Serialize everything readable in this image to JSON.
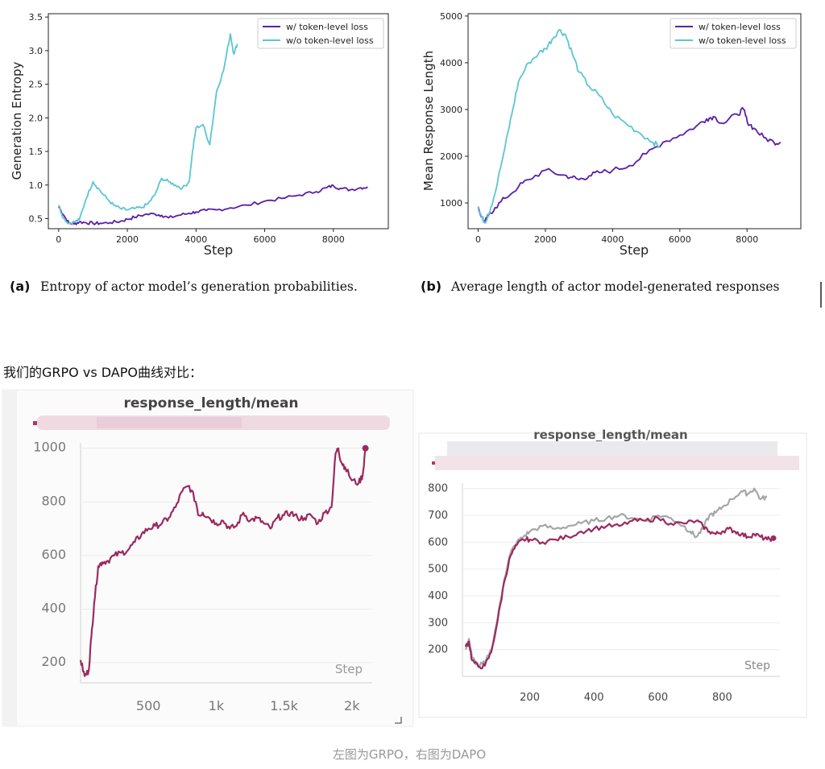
{
  "section_heading": "我们的GRPO vs DAPO曲线对比：",
  "footer_caption": "左图为GRPO，右图为DAPO",
  "colors": {
    "purple": "#5a1fa6",
    "cyan": "#5bc6d2",
    "crimson": "#9b2a5e",
    "grey": "#a4a6a8"
  },
  "chart_data": [
    {
      "type": "line",
      "xlabel": "Step",
      "ylabel": "Generation Entropy",
      "caption_tag": "(a)",
      "caption_text": "Entropy of actor model’s generation probabilities.",
      "xlim": [
        -300,
        9600
      ],
      "ylim": [
        0.35,
        3.55
      ],
      "xticks": [
        "0",
        "2000",
        "4000",
        "6000",
        "8000"
      ],
      "yticks": [
        "0.5",
        "1.0",
        "1.5",
        "2.0",
        "2.5",
        "3.0",
        "3.5"
      ],
      "legend_position": "top-right",
      "series": [
        {
          "name": "w/ token-level loss",
          "color": "#5a1fa6",
          "x": [
            0,
            150,
            300,
            450,
            600,
            800,
            1000,
            1200,
            1500,
            1800,
            2000,
            2200,
            2500,
            2800,
            3000,
            3200,
            3500,
            3800,
            4000,
            4300,
            4600,
            5000,
            5500,
            6000,
            6500,
            7000,
            7500,
            7800,
            8000,
            8200,
            8500,
            8800,
            9000
          ],
          "y": [
            0.68,
            0.55,
            0.43,
            0.42,
            0.45,
            0.44,
            0.43,
            0.43,
            0.44,
            0.46,
            0.49,
            0.52,
            0.56,
            0.57,
            0.55,
            0.51,
            0.55,
            0.58,
            0.6,
            0.62,
            0.63,
            0.66,
            0.7,
            0.76,
            0.8,
            0.85,
            0.9,
            0.96,
            0.99,
            0.95,
            0.93,
            0.96,
            0.97
          ]
        },
        {
          "name": "w/o token-level loss",
          "color": "#5bc6d2",
          "x": [
            0,
            150,
            300,
            450,
            600,
            800,
            1000,
            1200,
            1400,
            1600,
            1800,
            2000,
            2200,
            2400,
            2600,
            2800,
            3000,
            3200,
            3400,
            3600,
            3800,
            3900,
            4000,
            4200,
            4400,
            4600,
            4800,
            5000,
            5100,
            5200
          ],
          "y": [
            0.7,
            0.5,
            0.43,
            0.45,
            0.48,
            0.8,
            1.05,
            0.92,
            0.8,
            0.7,
            0.65,
            0.63,
            0.65,
            0.66,
            0.72,
            0.85,
            1.1,
            1.05,
            1.0,
            0.95,
            1.05,
            1.5,
            1.85,
            1.9,
            1.6,
            2.4,
            2.7,
            3.25,
            2.95,
            3.1
          ]
        }
      ]
    },
    {
      "type": "line",
      "xlabel": "Step",
      "ylabel": "Mean Response Length",
      "caption_tag": "(b)",
      "caption_text": "Average length of actor model-generated responses",
      "xlim": [
        -300,
        9600
      ],
      "ylim": [
        450,
        5050
      ],
      "xticks": [
        "0",
        "2000",
        "4000",
        "6000",
        "8000"
      ],
      "yticks": [
        "1000",
        "2000",
        "3000",
        "4000",
        "5000"
      ],
      "legend_position": "top-right",
      "series": [
        {
          "name": "w/ token-level loss",
          "color": "#5a1fa6",
          "x": [
            0,
            100,
            200,
            300,
            500,
            800,
            1200,
            1500,
            2000,
            2500,
            2800,
            3000,
            3300,
            3600,
            4000,
            4500,
            5000,
            5500,
            6000,
            6500,
            6800,
            7000,
            7300,
            7700,
            7900,
            8000,
            8200,
            8500,
            8800,
            9000
          ],
          "y": [
            920,
            700,
            580,
            720,
            900,
            1100,
            1350,
            1500,
            1700,
            1600,
            1550,
            1500,
            1580,
            1650,
            1700,
            1800,
            2050,
            2300,
            2450,
            2650,
            2800,
            2850,
            2700,
            2900,
            3000,
            2750,
            2600,
            2400,
            2300,
            2300
          ]
        },
        {
          "name": "w/o token-level loss",
          "color": "#5bc6d2",
          "x": [
            0,
            100,
            200,
            300,
            500,
            800,
            1000,
            1200,
            1500,
            1800,
            2000,
            2200,
            2400,
            2600,
            2800,
            3000,
            3300,
            3600,
            4000,
            4400,
            4800,
            5200,
            5400
          ],
          "y": [
            920,
            700,
            590,
            750,
            1200,
            2200,
            2900,
            3600,
            4000,
            4200,
            4300,
            4500,
            4700,
            4600,
            4200,
            3800,
            3500,
            3300,
            2900,
            2700,
            2500,
            2300,
            2200
          ]
        }
      ]
    },
    {
      "type": "line",
      "title": "response_length/mean",
      "xlabel": "Step",
      "xlim": [
        0,
        2150
      ],
      "ylim": [
        125,
        1020
      ],
      "xticks": [
        "500",
        "1k",
        "1.5k",
        "2k"
      ],
      "yticks": [
        "200",
        "400",
        "600",
        "800",
        "1000"
      ],
      "series": [
        {
          "color": "#9b2a5e",
          "x": [
            0,
            30,
            60,
            80,
            100,
            130,
            160,
            200,
            250,
            300,
            350,
            400,
            450,
            500,
            550,
            600,
            650,
            700,
            750,
            800,
            850,
            870,
            900,
            950,
            1000,
            1050,
            1100,
            1150,
            1200,
            1250,
            1300,
            1350,
            1400,
            1450,
            1500,
            1550,
            1600,
            1650,
            1700,
            1750,
            1800,
            1850,
            1880,
            1900,
            1920,
            1950,
            2000,
            2050,
            2080,
            2100
          ],
          "y": [
            210,
            150,
            170,
            300,
            420,
            560,
            575,
            580,
            600,
            610,
            620,
            650,
            680,
            700,
            710,
            720,
            740,
            780,
            840,
            860,
            800,
            750,
            760,
            740,
            720,
            730,
            700,
            710,
            760,
            730,
            740,
            720,
            700,
            740,
            750,
            760,
            740,
            740,
            750,
            720,
            760,
            780,
            980,
            1000,
            950,
            930,
            880,
            870,
            900,
            1000
          ]
        }
      ]
    },
    {
      "type": "line",
      "title": "response_length/mean",
      "xlabel": "Step",
      "xlim": [
        -10,
        980
      ],
      "ylim": [
        100,
        820
      ],
      "xticks": [
        "200",
        "400",
        "600",
        "800"
      ],
      "yticks": [
        "200",
        "300",
        "400",
        "500",
        "600",
        "700",
        "800"
      ],
      "series": [
        {
          "color": "#a4a6a8",
          "x": [
            0,
            10,
            20,
            40,
            60,
            80,
            100,
            120,
            140,
            160,
            180,
            200,
            240,
            280,
            320,
            360,
            400,
            440,
            480,
            520,
            560,
            600,
            640,
            680,
            700,
            720,
            740,
            760,
            780,
            800,
            830,
            860,
            880,
            900,
            920,
            940
          ],
          "y": [
            200,
            240,
            170,
            140,
            150,
            200,
            320,
            460,
            560,
            600,
            620,
            640,
            660,
            650,
            660,
            670,
            680,
            690,
            700,
            690,
            680,
            700,
            690,
            660,
            640,
            620,
            650,
            700,
            710,
            730,
            760,
            790,
            780,
            800,
            760,
            770
          ]
        },
        {
          "color": "#9b2a5e",
          "x": [
            0,
            10,
            20,
            40,
            60,
            80,
            100,
            120,
            140,
            160,
            180,
            200,
            240,
            280,
            320,
            360,
            400,
            440,
            480,
            520,
            560,
            600,
            640,
            680,
            720,
            740,
            760,
            780,
            800,
            820,
            840,
            860,
            880,
            900,
            920,
            940,
            960
          ],
          "y": [
            210,
            230,
            160,
            135,
            140,
            190,
            310,
            450,
            550,
            590,
            610,
            610,
            600,
            610,
            620,
            640,
            650,
            660,
            660,
            680,
            680,
            690,
            670,
            670,
            680,
            660,
            640,
            630,
            640,
            650,
            640,
            630,
            620,
            630,
            620,
            610,
            615
          ]
        }
      ]
    }
  ]
}
